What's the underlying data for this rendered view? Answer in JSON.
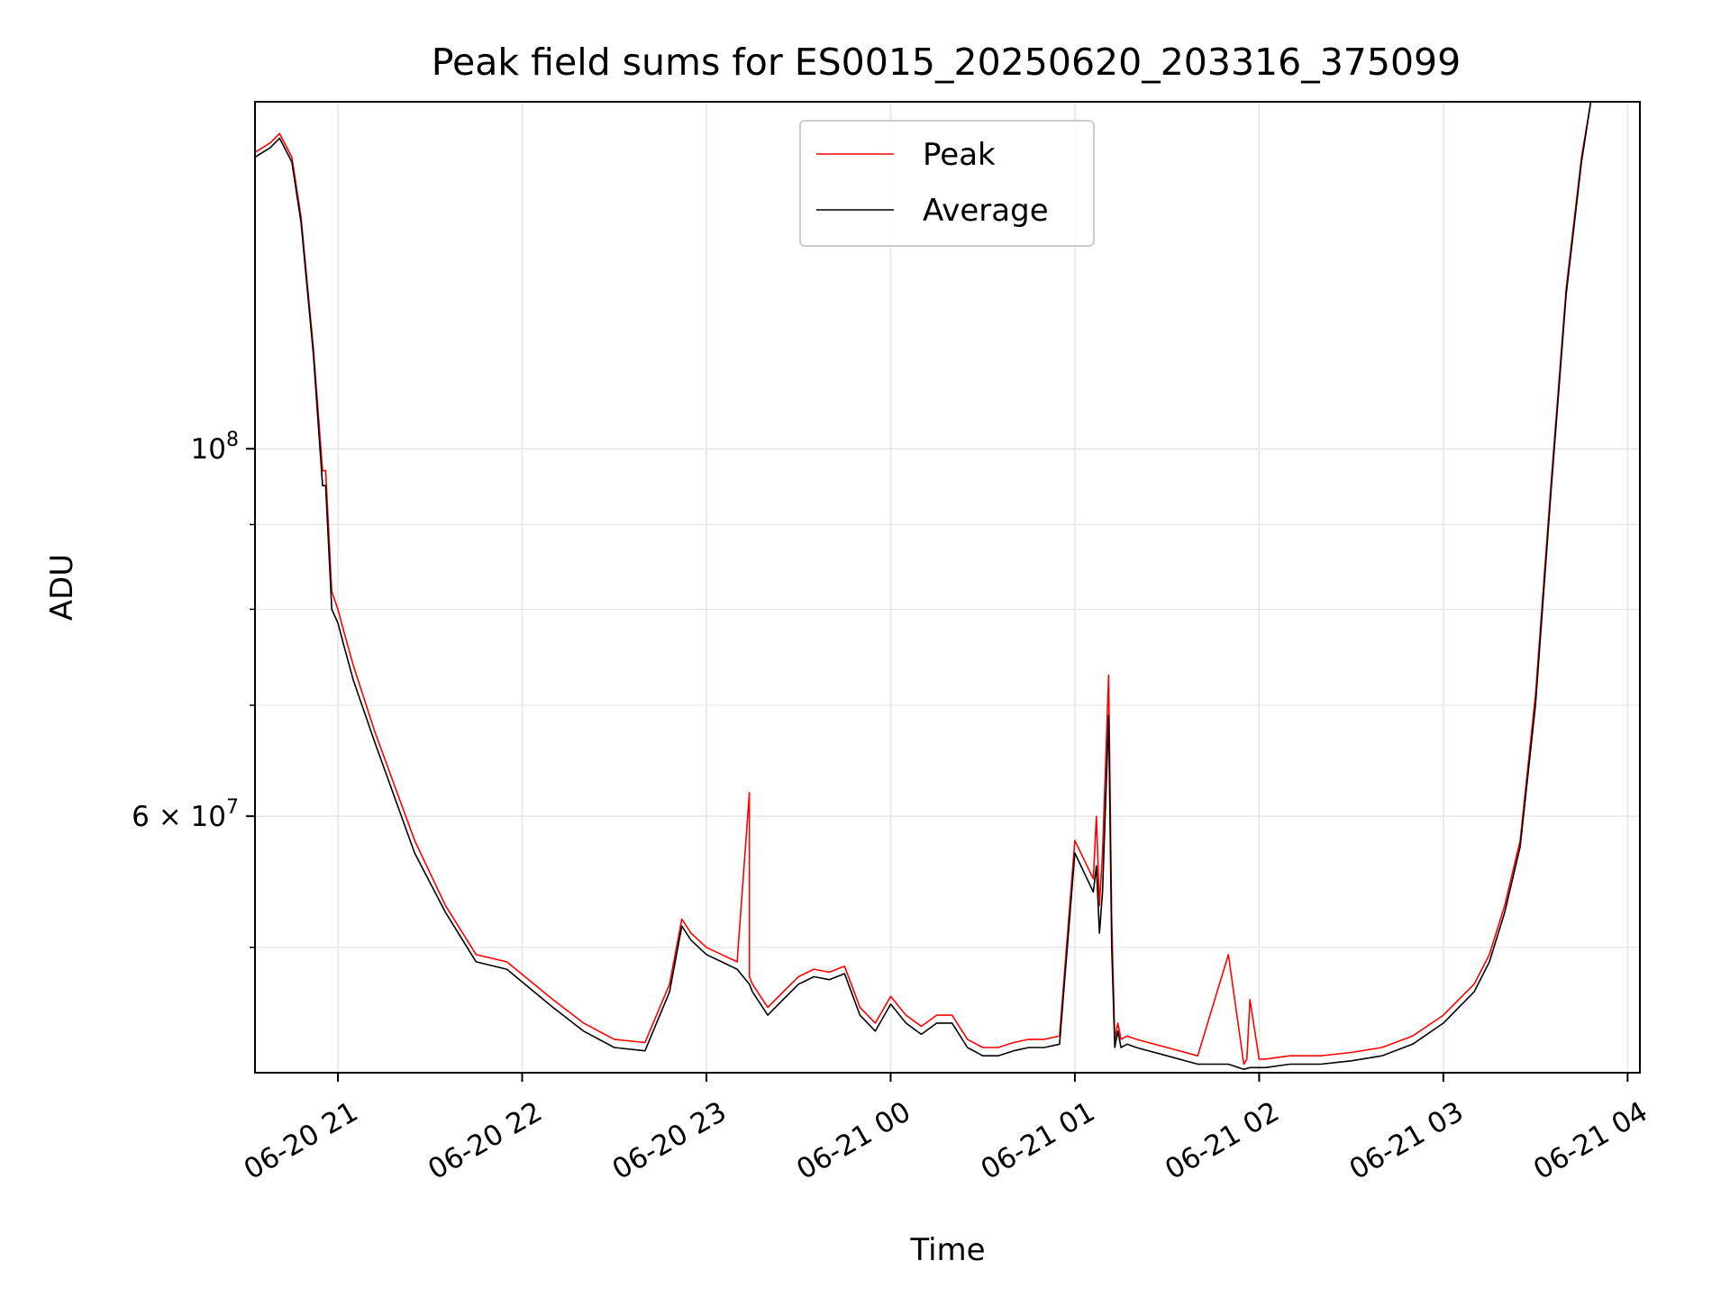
{
  "chart_data": {
    "type": "line",
    "title": "Peak field sums for ES0015_20250620_203316_375099",
    "xlabel": "Time",
    "ylabel": "ADU",
    "yscale": "log",
    "grid": true,
    "legend_position": "top-center",
    "xlim": [
      "2025-06-20 20:33",
      "2025-06-21 04:04"
    ],
    "ylim": [
      42000000,
      162000000
    ],
    "x_ticks": [
      {
        "value": "2025-06-20 21:00",
        "label": "06-20 21"
      },
      {
        "value": "2025-06-20 22:00",
        "label": "06-20 22"
      },
      {
        "value": "2025-06-20 23:00",
        "label": "06-20 23"
      },
      {
        "value": "2025-06-21 00:00",
        "label": "06-21 00"
      },
      {
        "value": "2025-06-21 01:00",
        "label": "06-21 01"
      },
      {
        "value": "2025-06-21 02:00",
        "label": "06-21 02"
      },
      {
        "value": "2025-06-21 03:00",
        "label": "06-21 03"
      },
      {
        "value": "2025-06-21 04:00",
        "label": "06-21 04"
      }
    ],
    "y_ticks": [
      {
        "value": 100000000,
        "base": "10",
        "exp": "8",
        "mant": ""
      },
      {
        "value": 60000000,
        "base": "10",
        "exp": "7",
        "mant": "6 × "
      }
    ],
    "y_minor_ticks": [
      50000000,
      70000000,
      80000000,
      90000000
    ],
    "colors": {
      "peak": "#ff0000",
      "average": "#000000",
      "grid": "#e6e6e6"
    },
    "series": [
      {
        "name": "Peak",
        "color": "#ff0000",
        "x": [
          "2025-06-20 20:33",
          "2025-06-20 20:38",
          "2025-06-20 20:41",
          "2025-06-20 20:45",
          "2025-06-20 20:48",
          "2025-06-20 20:52",
          "2025-06-20 20:55",
          "2025-06-20 20:56",
          "2025-06-20 20:58",
          "2025-06-20 21:00",
          "2025-06-20 21:02",
          "2025-06-20 21:05",
          "2025-06-20 21:12",
          "2025-06-20 21:25",
          "2025-06-20 21:35",
          "2025-06-20 21:45",
          "2025-06-20 21:55",
          "2025-06-20 22:10",
          "2025-06-20 22:20",
          "2025-06-20 22:30",
          "2025-06-20 22:40",
          "2025-06-20 22:48",
          "2025-06-20 22:52",
          "2025-06-20 22:55",
          "2025-06-20 23:00",
          "2025-06-20 23:05",
          "2025-06-20 23:10",
          "2025-06-20 23:14",
          "2025-06-20 23:14",
          "2025-06-20 23:15",
          "2025-06-20 23:20",
          "2025-06-20 23:25",
          "2025-06-20 23:30",
          "2025-06-20 23:35",
          "2025-06-20 23:40",
          "2025-06-20 23:45",
          "2025-06-20 23:50",
          "2025-06-20 23:55",
          "2025-06-21 00:00",
          "2025-06-21 00:05",
          "2025-06-21 00:10",
          "2025-06-21 00:15",
          "2025-06-21 00:20",
          "2025-06-21 00:25",
          "2025-06-21 00:30",
          "2025-06-21 00:35",
          "2025-06-21 00:40",
          "2025-06-21 00:45",
          "2025-06-21 00:50",
          "2025-06-21 00:55",
          "2025-06-21 01:00",
          "2025-06-21 01:06",
          "2025-06-21 01:07",
          "2025-06-21 01:08",
          "2025-06-21 01:09",
          "2025-06-21 01:11",
          "2025-06-21 01:12",
          "2025-06-21 01:13",
          "2025-06-21 01:14",
          "2025-06-21 01:15",
          "2025-06-21 01:17",
          "2025-06-21 01:20",
          "2025-06-21 01:30",
          "2025-06-21 01:40",
          "2025-06-21 01:50",
          "2025-06-21 01:55",
          "2025-06-21 01:56",
          "2025-06-21 01:57",
          "2025-06-21 02:00",
          "2025-06-21 02:01",
          "2025-06-21 02:02",
          "2025-06-21 02:10",
          "2025-06-21 02:20",
          "2025-06-21 02:30",
          "2025-06-21 02:40",
          "2025-06-21 02:50",
          "2025-06-21 03:00",
          "2025-06-21 03:10",
          "2025-06-21 03:15",
          "2025-06-21 03:20",
          "2025-06-21 03:25",
          "2025-06-21 03:30",
          "2025-06-21 03:35",
          "2025-06-21 03:40",
          "2025-06-21 03:45",
          "2025-06-21 03:48"
        ],
        "values": [
          151000000,
          153000000,
          155000000,
          150000000,
          138000000,
          115000000,
          97000000,
          97000000,
          82000000,
          80000000,
          77500000,
          74000000,
          67500000,
          58000000,
          53000000,
          49500000,
          49000000,
          46500000,
          45000000,
          44000000,
          43800000,
          47500000,
          52000000,
          51000000,
          50000000,
          49500000,
          49000000,
          62000000,
          48000000,
          47500000,
          46000000,
          47000000,
          48000000,
          48500000,
          48300000,
          48700000,
          46000000,
          45000000,
          46700000,
          45500000,
          44800000,
          45500000,
          45500000,
          44000000,
          43500000,
          43500000,
          43800000,
          44000000,
          44000000,
          44200000,
          58000000,
          55000000,
          60000000,
          53000000,
          57000000,
          73000000,
          52000000,
          44000000,
          45000000,
          44000000,
          44200000,
          44000000,
          43500000,
          43000000,
          49500000,
          42500000,
          42800000,
          46500000,
          42800000,
          42800000,
          42800000,
          43000000,
          43000000,
          43200000,
          43500000,
          44200000,
          45500000,
          47500000,
          49500000,
          53000000,
          58000000,
          71000000,
          95000000,
          125000000,
          150000000,
          162000000
        ]
      },
      {
        "name": "Average",
        "color": "#000000",
        "x": [
          "2025-06-20 20:33",
          "2025-06-20 20:38",
          "2025-06-20 20:41",
          "2025-06-20 20:45",
          "2025-06-20 20:48",
          "2025-06-20 20:52",
          "2025-06-20 20:55",
          "2025-06-20 20:56",
          "2025-06-20 20:58",
          "2025-06-20 21:00",
          "2025-06-20 21:02",
          "2025-06-20 21:05",
          "2025-06-20 21:12",
          "2025-06-20 21:25",
          "2025-06-20 21:35",
          "2025-06-20 21:45",
          "2025-06-20 21:55",
          "2025-06-20 22:10",
          "2025-06-20 22:20",
          "2025-06-20 22:30",
          "2025-06-20 22:40",
          "2025-06-20 22:48",
          "2025-06-20 22:52",
          "2025-06-20 22:55",
          "2025-06-20 23:00",
          "2025-06-20 23:05",
          "2025-06-20 23:10",
          "2025-06-20 23:14",
          "2025-06-20 23:15",
          "2025-06-20 23:20",
          "2025-06-20 23:25",
          "2025-06-20 23:30",
          "2025-06-20 23:35",
          "2025-06-20 23:40",
          "2025-06-20 23:45",
          "2025-06-20 23:50",
          "2025-06-20 23:55",
          "2025-06-21 00:00",
          "2025-06-21 00:05",
          "2025-06-21 00:10",
          "2025-06-21 00:15",
          "2025-06-21 00:20",
          "2025-06-21 00:25",
          "2025-06-21 00:30",
          "2025-06-21 00:35",
          "2025-06-21 00:40",
          "2025-06-21 00:45",
          "2025-06-21 00:50",
          "2025-06-21 00:55",
          "2025-06-21 01:00",
          "2025-06-21 01:06",
          "2025-06-21 01:07",
          "2025-06-21 01:08",
          "2025-06-21 01:09",
          "2025-06-21 01:11",
          "2025-06-21 01:12",
          "2025-06-21 01:13",
          "2025-06-21 01:14",
          "2025-06-21 01:15",
          "2025-06-21 01:17",
          "2025-06-21 01:20",
          "2025-06-21 01:30",
          "2025-06-21 01:40",
          "2025-06-21 01:50",
          "2025-06-21 01:55",
          "2025-06-21 01:57",
          "2025-06-21 02:00",
          "2025-06-21 02:02",
          "2025-06-21 02:10",
          "2025-06-21 02:20",
          "2025-06-21 02:30",
          "2025-06-21 02:40",
          "2025-06-21 02:50",
          "2025-06-21 03:00",
          "2025-06-21 03:10",
          "2025-06-21 03:15",
          "2025-06-21 03:20",
          "2025-06-21 03:25",
          "2025-06-21 03:30",
          "2025-06-21 03:35",
          "2025-06-21 03:40",
          "2025-06-21 03:45",
          "2025-06-21 03:48"
        ],
        "values": [
          150000000,
          152000000,
          154000000,
          149000000,
          137000000,
          114000000,
          95000000,
          95000000,
          80000000,
          78500000,
          76000000,
          72500000,
          66500000,
          57000000,
          52500000,
          49000000,
          48500000,
          46000000,
          44500000,
          43500000,
          43300000,
          47000000,
          51500000,
          50500000,
          49500000,
          49000000,
          48500000,
          47500000,
          47000000,
          45500000,
          46500000,
          47500000,
          48000000,
          47800000,
          48200000,
          45500000,
          44500000,
          46200000,
          45000000,
          44300000,
          45000000,
          45000000,
          43500000,
          43000000,
          43000000,
          43300000,
          43500000,
          43500000,
          43700000,
          57000000,
          54000000,
          56000000,
          51000000,
          54000000,
          69000000,
          50000000,
          43500000,
          44500000,
          43500000,
          43700000,
          43500000,
          43000000,
          42500000,
          42500000,
          42200000,
          42300000,
          42300000,
          42300000,
          42500000,
          42500000,
          42700000,
          43000000,
          43700000,
          45000000,
          47000000,
          49000000,
          52500000,
          57500000,
          70000000,
          94000000,
          124000000,
          149000000,
          162000000
        ]
      }
    ]
  }
}
